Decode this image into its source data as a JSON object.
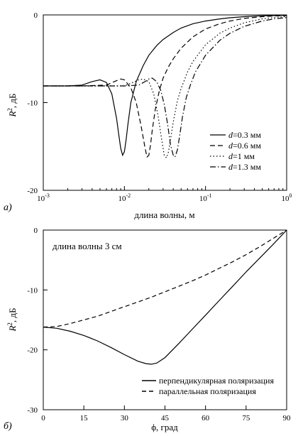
{
  "chart_data": [
    {
      "type": "line",
      "panel_label": "а)",
      "xscale": "log",
      "xlim": [
        0.001,
        1
      ],
      "ylim": [
        -20,
        0
      ],
      "xticks": [
        {
          "v": 0.001,
          "base": "10",
          "exp": "-3"
        },
        {
          "v": 0.01,
          "base": "10",
          "exp": "-2"
        },
        {
          "v": 0.1,
          "base": "10",
          "exp": "-1"
        },
        {
          "v": 1,
          "base": "10",
          "exp": "0"
        }
      ],
      "yticks": [
        0,
        -10,
        -20
      ],
      "xlabel": "длина волны, м",
      "ylabel_main": "R",
      "ylabel_sup": "2",
      "ylabel_rest": ", дБ",
      "legend_position": "lower-right",
      "series": [
        {
          "name_var": "d",
          "name_rest": "=0.3 мм",
          "dash": "",
          "x": [
            0.001,
            0.002,
            0.003,
            0.004,
            0.005,
            0.006,
            0.007,
            0.008,
            0.0085,
            0.009,
            0.0095,
            0.01,
            0.0105,
            0.011,
            0.012,
            0.014,
            0.017,
            0.02,
            0.025,
            0.03,
            0.04,
            0.05,
            0.07,
            0.1,
            0.15,
            0.2,
            0.3,
            0.5,
            0.7,
            1.0
          ],
          "y": [
            -8.1,
            -8.1,
            -8.0,
            -7.6,
            -7.4,
            -7.7,
            -9.0,
            -11.8,
            -13.6,
            -15.2,
            -16.0,
            -15.6,
            -14.2,
            -12.6,
            -10.0,
            -7.6,
            -5.8,
            -4.6,
            -3.5,
            -2.8,
            -2.0,
            -1.5,
            -1.0,
            -0.7,
            -0.45,
            -0.32,
            -0.2,
            -0.1,
            -0.07,
            -0.04
          ]
        },
        {
          "name_var": "d",
          "name_rest": "=0.6 мм",
          "dash": "7,4",
          "x": [
            0.001,
            0.003,
            0.006,
            0.008,
            0.009,
            0.01,
            0.012,
            0.014,
            0.016,
            0.018,
            0.019,
            0.02,
            0.021,
            0.022,
            0.024,
            0.027,
            0.03,
            0.035,
            0.04,
            0.05,
            0.07,
            0.1,
            0.15,
            0.2,
            0.3,
            0.5,
            0.7,
            1.0
          ],
          "y": [
            -8.1,
            -8.1,
            -8.0,
            -7.5,
            -7.3,
            -7.4,
            -8.3,
            -10.0,
            -12.6,
            -15.2,
            -16.2,
            -16.0,
            -14.8,
            -13.2,
            -10.8,
            -8.6,
            -7.2,
            -5.9,
            -5.0,
            -3.8,
            -2.5,
            -1.6,
            -1.0,
            -0.7,
            -0.4,
            -0.2,
            -0.12,
            -0.08
          ]
        },
        {
          "name_var": "d",
          "name_rest": "=1 мм",
          "dash": "1.5,3",
          "x": [
            0.001,
            0.005,
            0.01,
            0.012,
            0.015,
            0.017,
            0.02,
            0.023,
            0.026,
            0.029,
            0.031,
            0.033,
            0.035,
            0.037,
            0.04,
            0.045,
            0.05,
            0.06,
            0.07,
            0.1,
            0.15,
            0.2,
            0.3,
            0.5,
            0.7,
            1.0
          ],
          "y": [
            -8.1,
            -8.1,
            -8.1,
            -7.8,
            -7.4,
            -7.3,
            -7.6,
            -9.0,
            -11.5,
            -14.4,
            -16.0,
            -16.3,
            -15.6,
            -14.2,
            -12.2,
            -9.8,
            -8.4,
            -6.5,
            -5.3,
            -3.4,
            -2.1,
            -1.5,
            -0.9,
            -0.45,
            -0.3,
            -0.18
          ]
        },
        {
          "name_var": "d",
          "name_rest": "=1.3 мм",
          "dash": "8,3,1.5,3",
          "x": [
            0.001,
            0.005,
            0.01,
            0.015,
            0.018,
            0.02,
            0.022,
            0.025,
            0.028,
            0.031,
            0.034,
            0.037,
            0.04,
            0.042,
            0.045,
            0.048,
            0.052,
            0.058,
            0.065,
            0.075,
            0.1,
            0.15,
            0.2,
            0.3,
            0.5,
            0.7,
            1.0
          ],
          "y": [
            -8.1,
            -8.1,
            -8.1,
            -8.0,
            -7.6,
            -7.3,
            -7.2,
            -7.6,
            -8.6,
            -10.2,
            -12.4,
            -14.8,
            -16.0,
            -16.2,
            -15.4,
            -13.8,
            -11.6,
            -9.4,
            -8.0,
            -6.5,
            -4.6,
            -2.9,
            -2.1,
            -1.3,
            -0.7,
            -0.45,
            -0.3
          ]
        }
      ]
    },
    {
      "type": "line",
      "panel_label": "б)",
      "xlim": [
        0,
        90
      ],
      "ylim": [
        -30,
        0
      ],
      "xticks": [
        0,
        15,
        30,
        45,
        60,
        75,
        90
      ],
      "yticks": [
        0,
        -10,
        -20,
        -30
      ],
      "xlabel": "ϕ, град",
      "ylabel_main": "R",
      "ylabel_sup": "2",
      "ylabel_rest": ", дБ",
      "annotation": "длина волны 3 см",
      "legend_position": "lower-right",
      "series": [
        {
          "name": "перпендикулярная поляризация",
          "dash": "",
          "x": [
            0,
            5,
            10,
            15,
            20,
            25,
            30,
            35,
            38,
            40,
            42,
            45,
            50,
            55,
            60,
            65,
            70,
            75,
            80,
            85,
            90
          ],
          "y": [
            -16.2,
            -16.4,
            -16.9,
            -17.6,
            -18.5,
            -19.6,
            -20.8,
            -21.9,
            -22.3,
            -22.4,
            -22.2,
            -21.3,
            -19.0,
            -16.6,
            -14.2,
            -11.8,
            -9.4,
            -7.0,
            -4.7,
            -2.4,
            0.0
          ]
        },
        {
          "name": "параллельная поляризация",
          "dash": "6,4",
          "x": [
            0,
            5,
            10,
            15,
            20,
            25,
            30,
            35,
            40,
            45,
            50,
            55,
            60,
            65,
            70,
            75,
            80,
            85,
            90
          ],
          "y": [
            -16.2,
            -16.1,
            -15.6,
            -15.0,
            -14.4,
            -13.6,
            -12.8,
            -12.0,
            -11.2,
            -10.3,
            -9.4,
            -8.5,
            -7.5,
            -6.4,
            -5.3,
            -4.1,
            -2.8,
            -1.4,
            0.0
          ]
        }
      ]
    }
  ]
}
